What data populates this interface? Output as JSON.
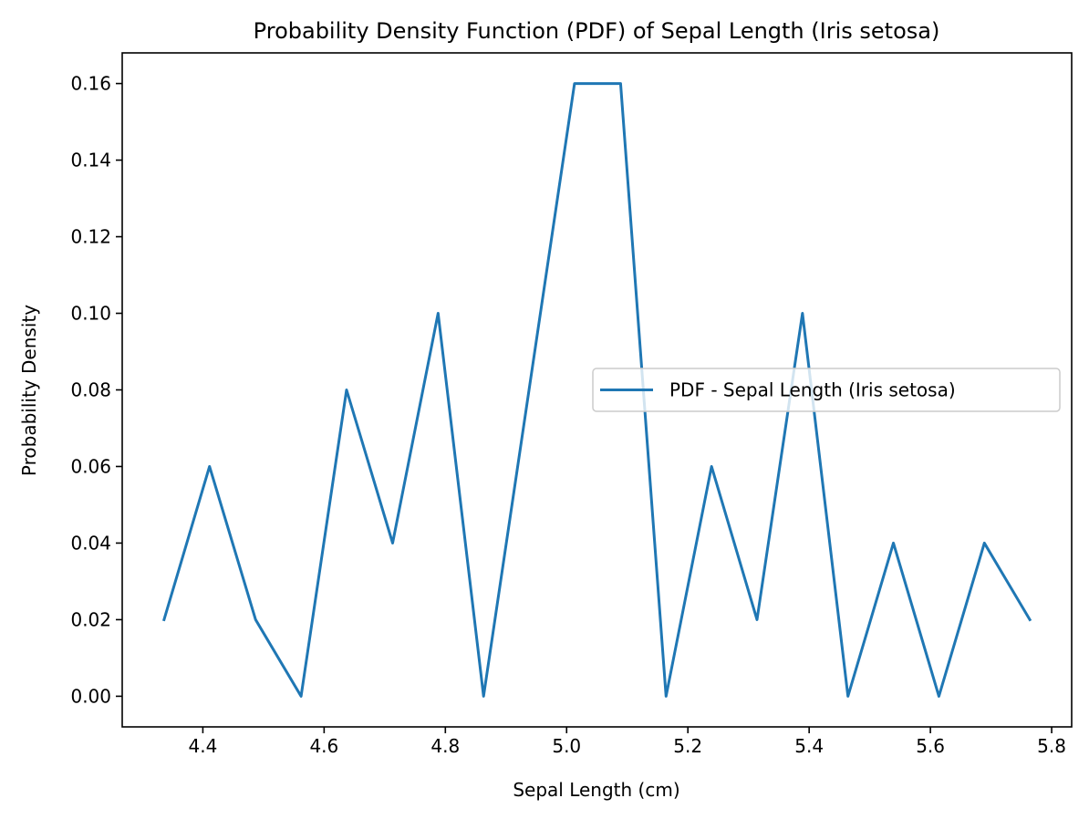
{
  "chart_data": {
    "type": "line",
    "title": "Probability Density Function (PDF) of Sepal Length (Iris setosa)",
    "xlabel": "Sepal Length (cm)",
    "ylabel": "Probability Density",
    "xlim": [
      4.267,
      5.833
    ],
    "ylim": [
      -0.008,
      0.168
    ],
    "xticks": [
      4.4,
      4.6,
      4.8,
      5.0,
      5.2,
      5.4,
      5.6,
      5.8
    ],
    "xtick_labels": [
      "4.4",
      "4.6",
      "4.8",
      "5.0",
      "5.2",
      "5.4",
      "5.6",
      "5.8"
    ],
    "yticks": [
      0.0,
      0.02,
      0.04,
      0.06,
      0.08,
      0.1,
      0.12,
      0.14,
      0.16
    ],
    "ytick_labels": [
      "0.00",
      "0.02",
      "0.04",
      "0.06",
      "0.08",
      "0.10",
      "0.12",
      "0.14",
      "0.16"
    ],
    "grid": false,
    "legend_position": "center-right",
    "series": [
      {
        "name": "PDF - Sepal Length (Iris setosa)",
        "color": "#1f77b4",
        "x": [
          4.336,
          4.411,
          4.487,
          4.562,
          4.637,
          4.713,
          4.788,
          4.863,
          4.938,
          5.013,
          5.089,
          5.164,
          5.239,
          5.314,
          5.389,
          5.464,
          5.539,
          5.614,
          5.689,
          5.764
        ],
        "y": [
          0.02,
          0.06,
          0.02,
          0.0,
          0.08,
          0.04,
          0.1,
          0.0,
          0.08,
          0.16,
          0.16,
          0.0,
          0.06,
          0.02,
          0.1,
          0.0,
          0.04,
          0.0,
          0.04,
          0.02
        ]
      }
    ]
  }
}
